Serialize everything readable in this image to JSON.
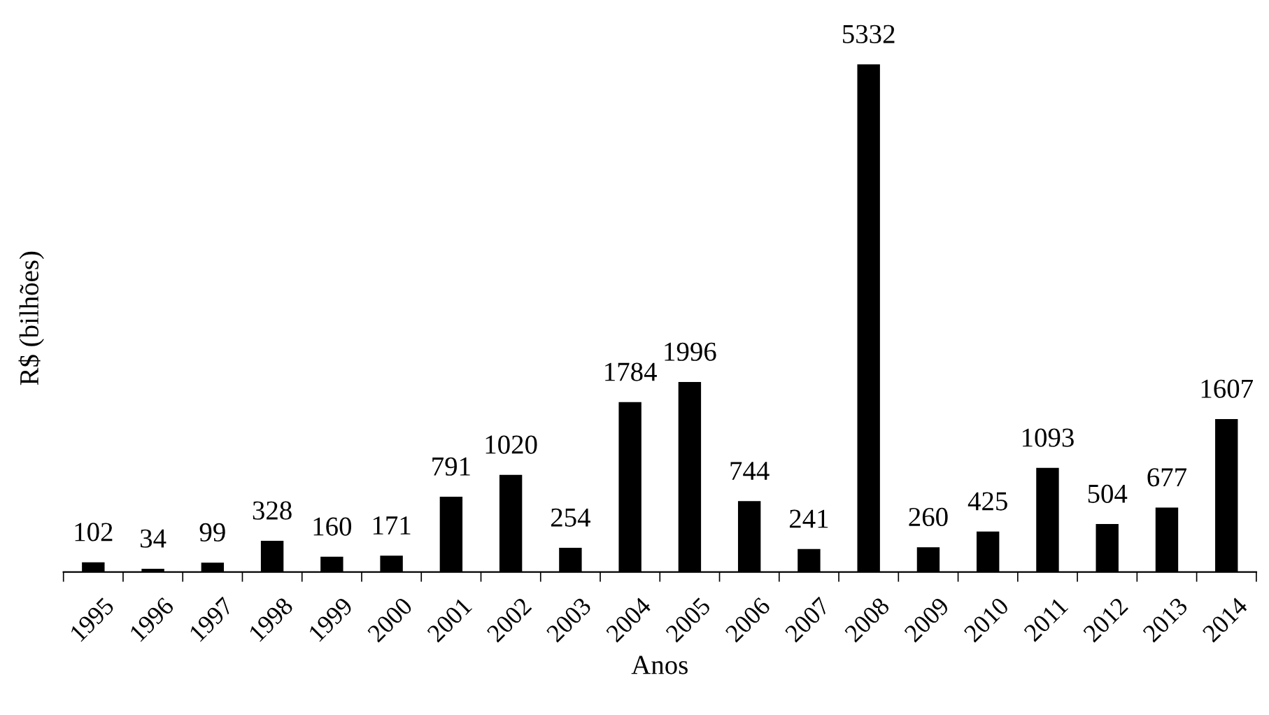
{
  "chart_data": {
    "type": "bar",
    "categories": [
      "1995",
      "1996",
      "1997",
      "1998",
      "1999",
      "2000",
      "2001",
      "2002",
      "2003",
      "2004",
      "2005",
      "2006",
      "2007",
      "2008",
      "2009",
      "2010",
      "2011",
      "2012",
      "2013",
      "2014"
    ],
    "values": [
      102,
      34,
      99,
      328,
      160,
      171,
      791,
      1020,
      254,
      1784,
      1996,
      744,
      241,
      5332,
      260,
      425,
      1093,
      504,
      677,
      1607
    ],
    "color": "#000000",
    "xlabel": "Anos",
    "ylabel": "R$ (bilhões)",
    "data_labels": true,
    "tick_labels": "x",
    "grid": false,
    "legend": false
  }
}
